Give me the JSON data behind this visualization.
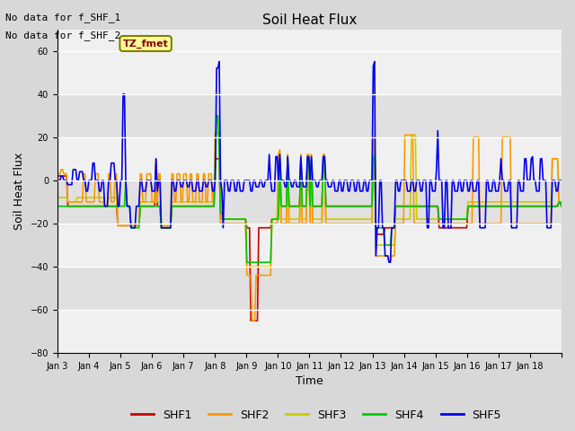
{
  "title": "Soil Heat Flux",
  "xlabel": "Time",
  "ylabel": "Soil Heat Flux",
  "ylim": [
    -80,
    70
  ],
  "yticks": [
    -80,
    -60,
    -40,
    -20,
    0,
    20,
    40,
    60
  ],
  "colors": {
    "SHF1": "#cc0000",
    "SHF2": "#ff9900",
    "SHF3": "#cccc00",
    "SHF4": "#00cc00",
    "SHF5": "#0000ee"
  },
  "annotation_text1": "No data for f_SHF_1",
  "annotation_text2": "No data for f_SHF_2",
  "legend_label_text": "TZ_fmet",
  "x_tick_labels": [
    "Jan 3",
    "Jan 4",
    "Jan 5",
    "Jan 6",
    "Jan 7",
    "Jan 8",
    "Jan 9",
    "Jan 10",
    "Jan 11",
    "Jan 12",
    "Jan 13",
    "Jan 14",
    "Jan 15",
    "Jan 16",
    "Jan 17",
    "Jan 18"
  ],
  "bg_stripe_light": "#f0f0f0",
  "bg_stripe_dark": "#e0e0e0"
}
